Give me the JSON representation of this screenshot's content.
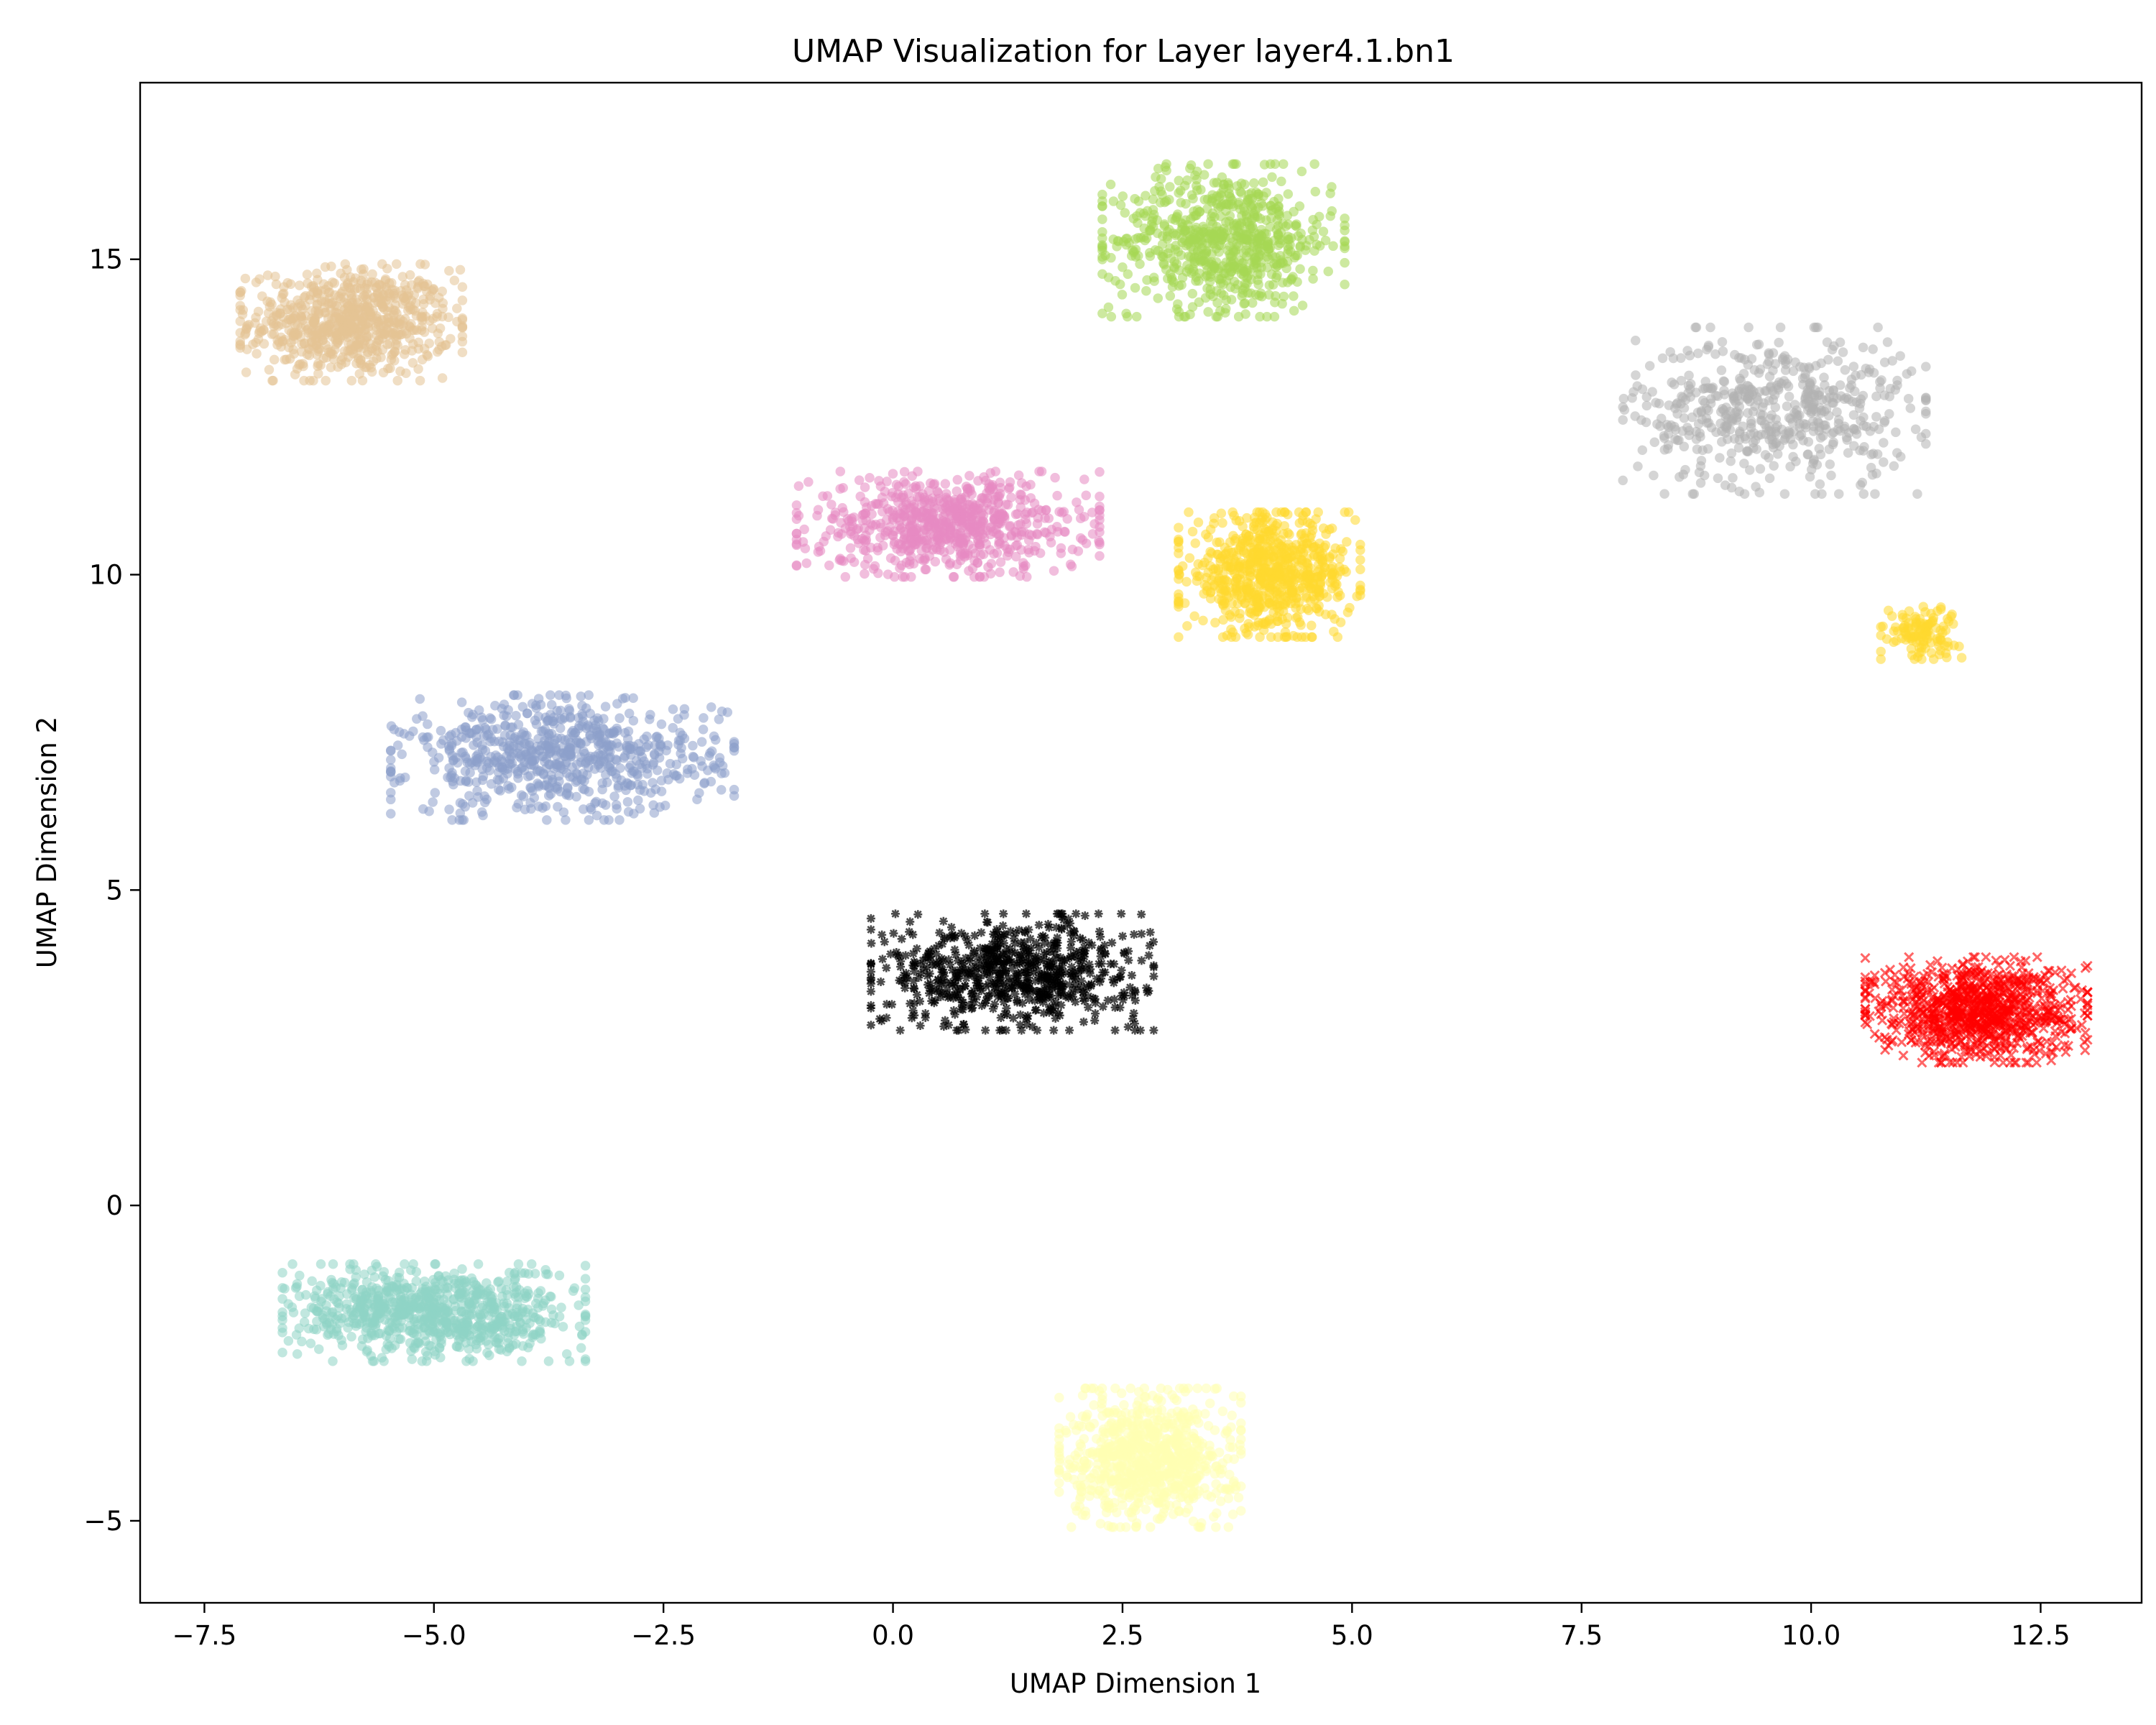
{
  "chart_data": {
    "type": "scatter",
    "title": "UMAP Visualization for Layer layer4.1.bn1",
    "xlabel": "UMAP Dimension 1",
    "ylabel": "UMAP Dimension 2",
    "xlim": [
      -8.2,
      13.6
    ],
    "ylim": [
      -6.3,
      17.8
    ],
    "xticks": [
      -7.5,
      -5.0,
      -2.5,
      0.0,
      2.5,
      5.0,
      7.5,
      10.0,
      12.5
    ],
    "xtick_labels": [
      "−7.5",
      "−5.0",
      "−2.5",
      "0.0",
      "2.5",
      "5.0",
      "7.5",
      "10.0",
      "12.5"
    ],
    "yticks": [
      -5,
      0,
      5,
      10,
      15
    ],
    "ytick_labels": [
      "−5",
      "0",
      "5",
      "10",
      "15"
    ],
    "grid": false,
    "legend": "none",
    "clusters": [
      {
        "color": "#e5c494",
        "center": [
          -5.9,
          14.0
        ],
        "spread": [
          0.55,
          0.42
        ],
        "count": 700,
        "marker": "circle"
      },
      {
        "color": "#a6d854",
        "center": [
          3.6,
          15.3
        ],
        "spread": [
          0.6,
          0.55
        ],
        "count": 700,
        "marker": "circle"
      },
      {
        "color": "#b3b3b3",
        "center": [
          9.6,
          12.6
        ],
        "spread": [
          0.75,
          0.6
        ],
        "count": 550,
        "marker": "circle"
      },
      {
        "color": "#e78ac3",
        "center": [
          0.6,
          10.8
        ],
        "spread": [
          0.75,
          0.38
        ],
        "count": 700,
        "marker": "circle"
      },
      {
        "color": "#ffd92f",
        "center": [
          4.1,
          10.0
        ],
        "spread": [
          0.45,
          0.45
        ],
        "count": 700,
        "marker": "circle"
      },
      {
        "color": "#ffd92f",
        "center": [
          11.2,
          9.1
        ],
        "spread": [
          0.2,
          0.2
        ],
        "count": 120,
        "marker": "circle"
      },
      {
        "color": "#8da0cb",
        "center": [
          -3.6,
          7.1
        ],
        "spread": [
          0.85,
          0.45
        ],
        "count": 700,
        "marker": "circle"
      },
      {
        "color": "#000000",
        "center": [
          1.3,
          3.7
        ],
        "spread": [
          0.7,
          0.42
        ],
        "count": 700,
        "marker": "star"
      },
      {
        "color": "#ff0000",
        "center": [
          11.8,
          3.1
        ],
        "spread": [
          0.55,
          0.38
        ],
        "count": 900,
        "marker": "x"
      },
      {
        "color": "#8fd4c6",
        "center": [
          -5.0,
          -1.7
        ],
        "spread": [
          0.75,
          0.35
        ],
        "count": 800,
        "marker": "circle"
      },
      {
        "color": "#ffffb3",
        "center": [
          2.8,
          -4.0
        ],
        "spread": [
          0.45,
          0.5
        ],
        "count": 800,
        "marker": "circle"
      }
    ]
  }
}
